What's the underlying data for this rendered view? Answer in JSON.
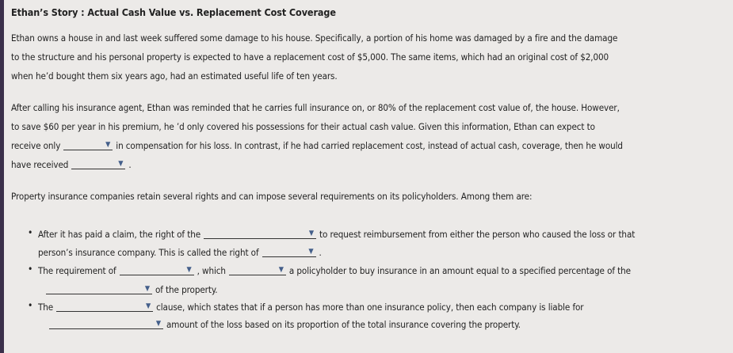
{
  "title": "Ethan’s Story : Actual Cash Value vs. Replacement Cost Coverage",
  "para1": [
    "Ethan owns a house in and last week suffered some damage to his house. Specifically, a portion of his home was damaged by a fire and the damage",
    "to the structure and his personal property is expected to have a replacement cost of $5,000. The same items, which had an original cost of $2,000",
    "when he’d bought them six years ago, had an estimated useful life of ten years."
  ],
  "para2": [
    "After calling his insurance agent, Ethan was reminded that he carries full insurance on, or 80% of the replacement cost value of, the house. However,",
    "to save $60 per year in his premium, he ’d only covered his possessions for their actual cash value. Given this information, Ethan can expect to",
    "receive only",
    "in compensation for his loss. In contrast, if he had carried replacement cost, instead of actual cash, coverage, then he would",
    "have received",
    "."
  ],
  "para3": "Property insurance companies retain several rights and can impose several requirements on its policyholders. Among them are:",
  "bullets": {
    "b1a": "After it has paid a claim, the right of the",
    "b1b": "to request reimbursement from either the person who caused the loss or that",
    "b1c": "person’s insurance company. This is called the right of",
    "b1d": ".",
    "b2a": "The requirement of",
    "b2b": ", which",
    "b2c": "a policyholder to buy insurance in an amount equal to a specified percentage of the",
    "b2d": "of the property.",
    "b3a": "The",
    "b3b": "clause, which states that if a person has more than one insurance policy, then each company is liable for",
    "b3c": "amount of the loss based on its proportion of the total insurance covering the property."
  },
  "dropdown_icon": "triangle-down",
  "accent": "#445f8a"
}
